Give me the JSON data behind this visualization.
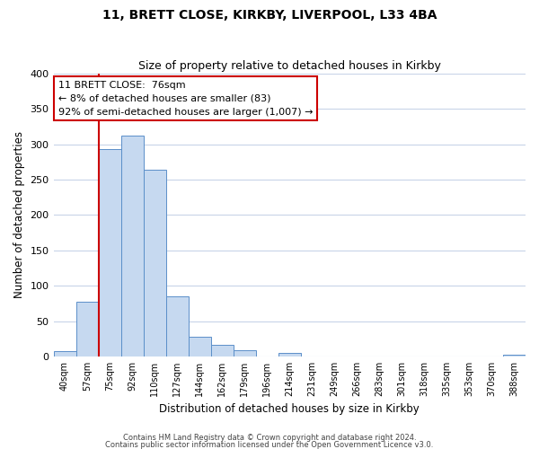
{
  "title": "11, BRETT CLOSE, KIRKBY, LIVERPOOL, L33 4BA",
  "subtitle": "Size of property relative to detached houses in Kirkby",
  "xlabel": "Distribution of detached houses by size in Kirkby",
  "ylabel": "Number of detached properties",
  "bin_labels": [
    "40sqm",
    "57sqm",
    "75sqm",
    "92sqm",
    "110sqm",
    "127sqm",
    "144sqm",
    "162sqm",
    "179sqm",
    "196sqm",
    "214sqm",
    "231sqm",
    "249sqm",
    "266sqm",
    "283sqm",
    "301sqm",
    "318sqm",
    "335sqm",
    "353sqm",
    "370sqm",
    "388sqm"
  ],
  "bar_heights": [
    8,
    77,
    293,
    313,
    264,
    85,
    28,
    16,
    9,
    0,
    5,
    0,
    0,
    0,
    0,
    0,
    0,
    0,
    0,
    0,
    3
  ],
  "bar_color": "#c6d9f0",
  "bar_edge_color": "#5b8fc9",
  "property_line_color": "#cc0000",
  "property_line_bin": 2,
  "annotation_line1": "11 BRETT CLOSE:  76sqm",
  "annotation_line2": "← 8% of detached houses are smaller (83)",
  "annotation_line3": "92% of semi-detached houses are larger (1,007) →",
  "annotation_box_color": "#ffffff",
  "annotation_box_edge": "#cc0000",
  "ylim": [
    0,
    400
  ],
  "yticks": [
    0,
    50,
    100,
    150,
    200,
    250,
    300,
    350,
    400
  ],
  "footer1": "Contains HM Land Registry data © Crown copyright and database right 2024.",
  "footer2": "Contains public sector information licensed under the Open Government Licence v3.0.",
  "background_color": "#ffffff",
  "grid_color": "#c8d4e8",
  "title_fontsize": 10,
  "subtitle_fontsize": 9
}
